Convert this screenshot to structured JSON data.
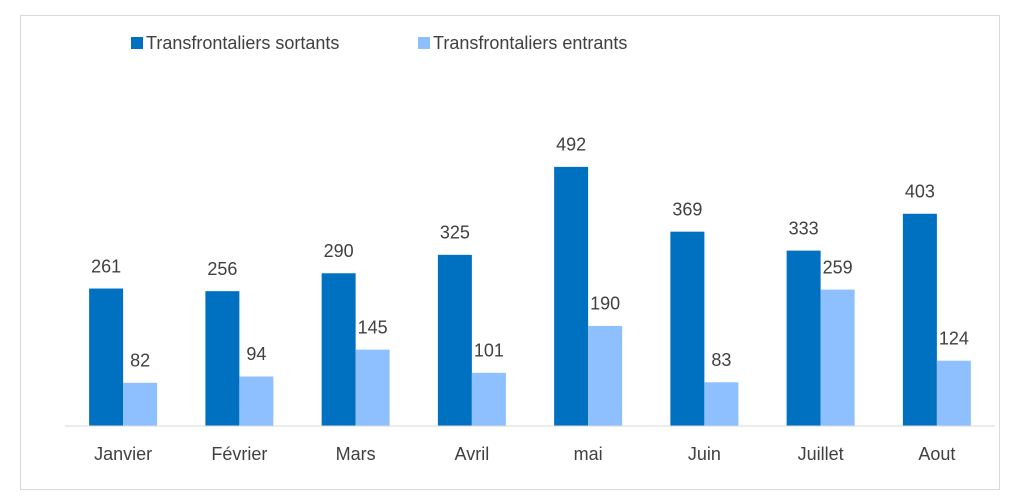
{
  "chart_data": {
    "type": "bar",
    "categories": [
      "Janvier",
      "Février",
      "Mars",
      "Avril",
      "mai",
      "Juin",
      "Juillet",
      "Aout"
    ],
    "series": [
      {
        "name": "Transfrontaliers sortants",
        "color": "#0070c0",
        "values": [
          261,
          256,
          290,
          325,
          492,
          369,
          333,
          403
        ]
      },
      {
        "name": "Transfrontaliers entrants",
        "color": "#8ec0ff",
        "values": [
          82,
          94,
          145,
          101,
          190,
          83,
          259,
          124
        ]
      }
    ],
    "ylim": [
      0,
      600
    ],
    "legend": "top"
  }
}
